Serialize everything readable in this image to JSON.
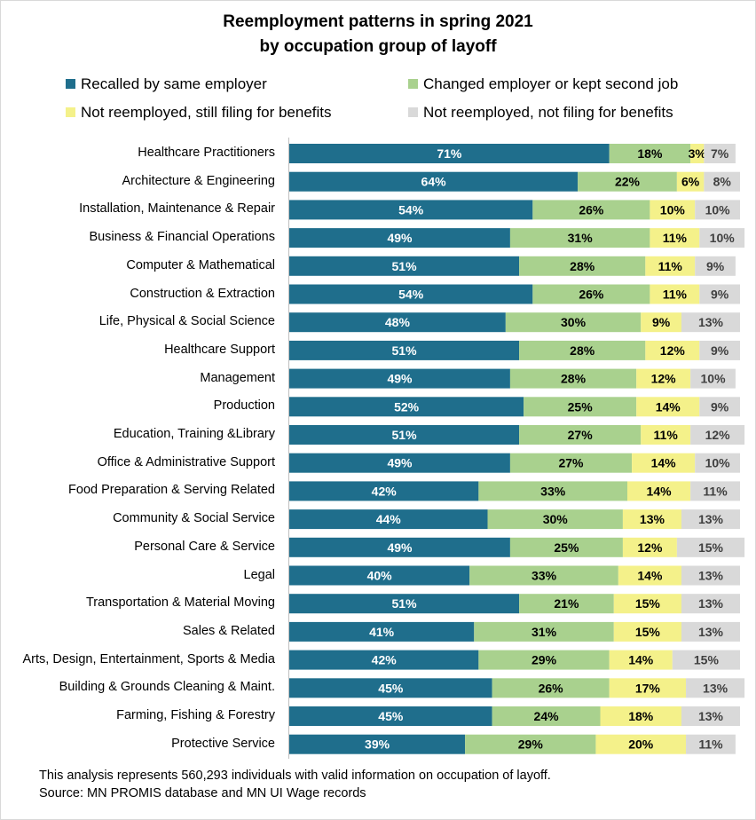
{
  "chart_data": {
    "type": "bar",
    "orientation": "horizontal",
    "stacked": true,
    "title_line1": "Reemployment patterns in spring 2021",
    "title_line2": "by occupation group of layoff",
    "legend_position": "top",
    "categories": [
      "Healthcare Practitioners",
      "Architecture & Engineering",
      "Installation, Maintenance & Repair",
      "Business & Financial Operations",
      "Computer & Mathematical",
      "Construction & Extraction",
      "Life, Physical & Social Science",
      "Healthcare Support",
      "Management",
      "Production",
      "Education, Training &Library",
      "Office & Administrative Support",
      "Food Preparation & Serving Related",
      "Community & Social Service",
      "Personal Care & Service",
      "Legal",
      "Transportation & Material Moving",
      "Sales & Related",
      "Arts, Design, Entertainment, Sports & Media",
      "Building & Grounds Cleaning & Maint.",
      "Farming, Fishing & Forestry",
      "Protective Service"
    ],
    "series": [
      {
        "name": "Recalled by same employer",
        "color": "#1f6e8c",
        "values": [
          71,
          64,
          54,
          49,
          51,
          54,
          48,
          51,
          49,
          52,
          51,
          49,
          42,
          44,
          49,
          40,
          51,
          41,
          42,
          45,
          45,
          39
        ]
      },
      {
        "name": "Changed employer or kept second job",
        "color": "#a9d18e",
        "values": [
          18,
          22,
          26,
          31,
          28,
          26,
          30,
          28,
          28,
          25,
          27,
          27,
          33,
          30,
          25,
          33,
          21,
          31,
          29,
          26,
          24,
          29
        ]
      },
      {
        "name": "Not reemployed, still filing for benefits",
        "color": "#f4f18a",
        "values": [
          3,
          6,
          10,
          11,
          11,
          11,
          9,
          12,
          12,
          14,
          11,
          14,
          14,
          13,
          12,
          14,
          15,
          15,
          14,
          17,
          18,
          20
        ]
      },
      {
        "name": "Not reemployed, not filing for benefits",
        "color": "#d9d9d9",
        "values": [
          7,
          8,
          10,
          10,
          9,
          9,
          13,
          9,
          10,
          9,
          12,
          10,
          11,
          13,
          15,
          13,
          13,
          13,
          15,
          13,
          13,
          11
        ]
      }
    ],
    "label_suffix": "%",
    "xlim": [
      0,
      100
    ]
  },
  "footnote": {
    "line1": "This analysis represents 560,293 individuals with valid information on occupation of layoff.",
    "line2": "Source: MN PROMIS database and MN UI Wage records"
  }
}
